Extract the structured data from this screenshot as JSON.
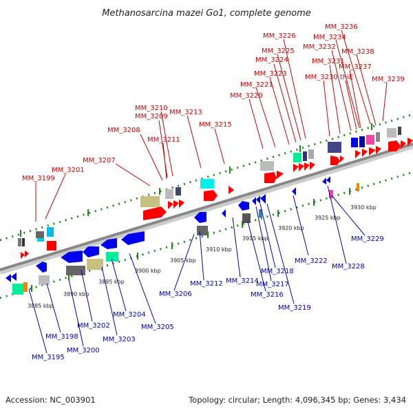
{
  "title": "Methanosarcina mazei Go1, complete genome",
  "accession": "Accession: NC_003901",
  "summary": "Topology: circular; Length: 4,096,345 bp; Genes: 3,434",
  "colors": {
    "forward_label": "#cc0000",
    "reverse_label": "#0000bb",
    "backbone": "#888888",
    "dot_axis": "#1a8a1a"
  },
  "ticks": [
    "3885 kbp",
    "3890 kbp",
    "3895 kbp",
    "3900 kbp",
    "3905 kbp",
    "3910 kbp",
    "3915 kbp",
    "3920 kbp",
    "3925 kbp",
    "3930 kbp"
  ],
  "forward_labels": [
    "MM_3199",
    "MM_3201",
    "MM_3207",
    "MM_3208",
    "MM_3209",
    "MM_3210",
    "MM_3211",
    "MM_3213",
    "MM_3215",
    "MM_3220",
    "MM_3221",
    "MM_3223",
    "MM_3224",
    "MM_3225",
    "MM_3226",
    "MM_3230",
    "MM_3231",
    "MM_3232",
    "MM_3234",
    "MM_3236",
    "MM_3237",
    "thiE",
    "MM_3238",
    "MM_3239"
  ],
  "reverse_labels": [
    "MM_3195",
    "MM_3198",
    "MM_3200",
    "MM_3202",
    "MM_3203",
    "MM_3204",
    "MM_3205",
    "MM_3206",
    "MM_3212",
    "MM_3214",
    "MM_3216",
    "MM_3217",
    "MM_3218",
    "MM_3219",
    "MM_3222",
    "MM_3228",
    "MM_3229"
  ]
}
